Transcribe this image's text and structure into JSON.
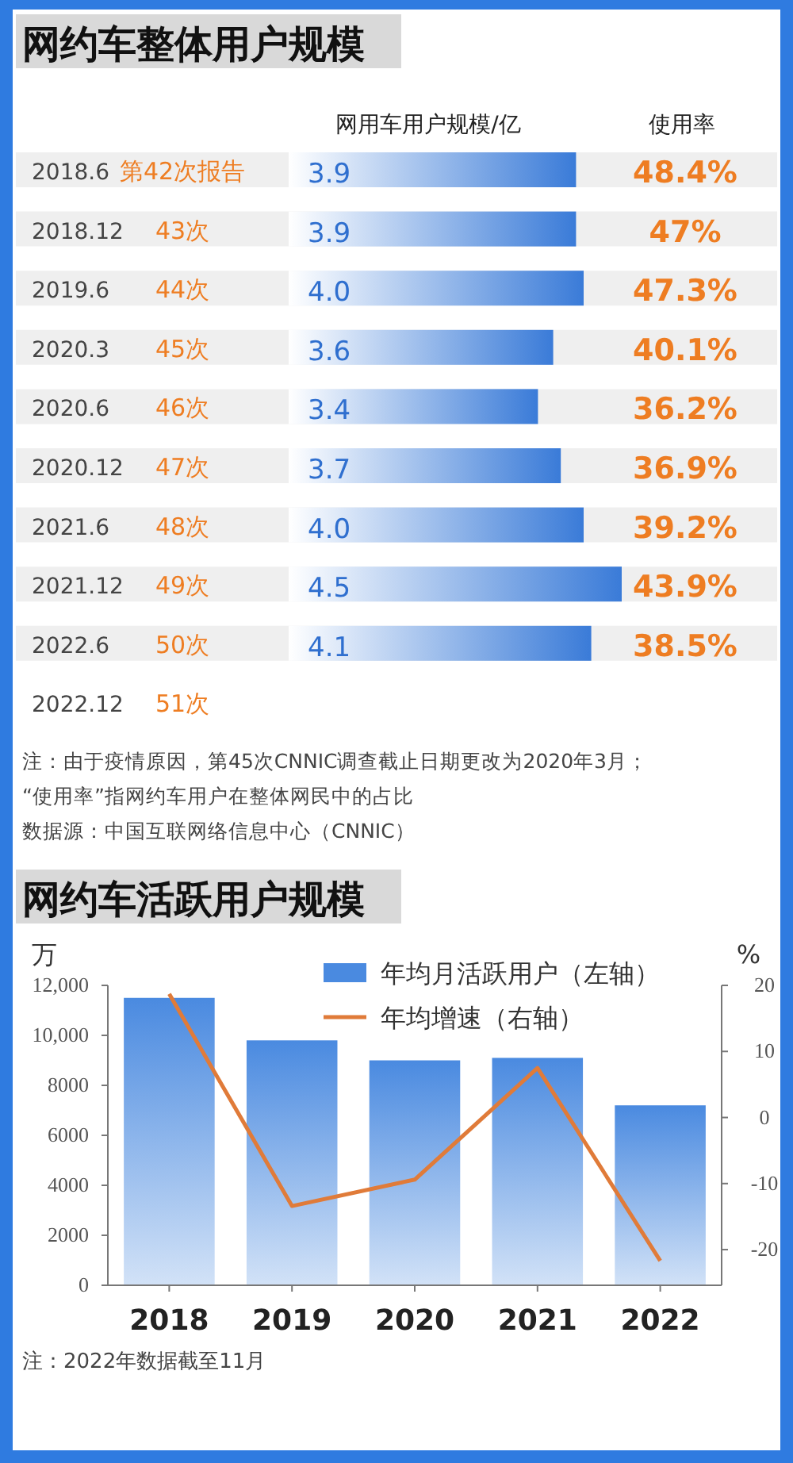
{
  "chart_data": [
    {
      "type": "bar",
      "orientation": "horizontal",
      "title": "网约车整体用户规模",
      "categories": [
        "2018.6",
        "2018.12",
        "2019.6",
        "2020.3",
        "2020.6",
        "2020.12",
        "2021.6",
        "2021.12",
        "2022.6",
        "2022.12"
      ],
      "series": [
        {
          "name": "网用车用户规模/亿",
          "color": "#3a7bd8",
          "values": [
            3.9,
            3.9,
            4.0,
            3.6,
            3.4,
            3.7,
            4.0,
            4.5,
            4.1,
            null
          ],
          "value_labels": [
            "3.9",
            "3.9",
            "4.0",
            "3.6",
            "3.4",
            "3.7",
            "4.0",
            "4.5",
            "4.1",
            null
          ]
        }
      ],
      "annotations": [
        "使用率",
        "第42次报告",
        "48.4%",
        "43次",
        "47%",
        "44次",
        "47.3%",
        "45次",
        "40.1%",
        "46次",
        "36.2%",
        "47次",
        "36.9%",
        "48次",
        "39.2%",
        "49次",
        "43.9%",
        "50次",
        "38.5%",
        "51次",
        "注：由于疫情原因，第45次CNNIC调查截止日期更改为2020年3月；",
        "“使用率”指网约车用户在整体网民中的占比",
        "数据源：中国互联网络信息中心（CNNIC）"
      ]
    },
    {
      "type": "bar",
      "title": "网约车活跃用户规模",
      "categories": [
        "2018",
        "2019",
        "2020",
        "2021",
        "2022"
      ],
      "series": [
        {
          "name": "年均月活跃用户（左轴）",
          "color": "#4a8ae0",
          "values": [
            11500,
            9800,
            9000,
            9100,
            7200
          ]
        },
        {
          "name": "年均增速（右轴）",
          "type": "line",
          "axis": "y2",
          "color": "#e07b39",
          "values": [
            18.7,
            -13.4,
            -9.4,
            7.5,
            -21.7
          ]
        }
      ],
      "ylabel": "万",
      "y2label": "%",
      "ylim": [
        0,
        12000
      ],
      "yticks": [
        0,
        2000,
        4000,
        6000,
        8000,
        {
          "value": 10000,
          "label": "10,000"
        },
        {
          "value": 12000,
          "label": "12,000"
        }
      ],
      "y2lim": [
        -25.4,
        20
      ],
      "y2ticks": [
        -20,
        -10,
        0,
        10,
        20
      ],
      "legend": "top",
      "grid": false,
      "line_style": "solid",
      "annotations": [
        "注：2022年数据截至11月"
      ]
    }
  ]
}
